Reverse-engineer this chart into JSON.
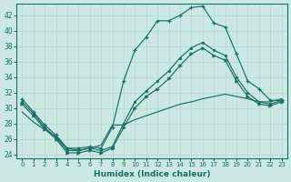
{
  "xlabel": "Humidex (Indice chaleur)",
  "bg_color": "#cce8e3",
  "grid_color": "#b8ddd8",
  "line_color": "#1a6e65",
  "xlim": [
    -0.5,
    23.5
  ],
  "ylim": [
    23.5,
    43.5
  ],
  "yticks": [
    24,
    26,
    28,
    30,
    32,
    34,
    36,
    38,
    40,
    42
  ],
  "xticks": [
    0,
    1,
    2,
    3,
    4,
    5,
    6,
    7,
    8,
    9,
    10,
    11,
    12,
    13,
    14,
    15,
    16,
    17,
    18,
    19,
    20,
    21,
    22,
    23
  ],
  "curve_top_x": [
    0,
    1,
    2,
    3,
    4,
    5,
    6,
    7,
    8,
    9,
    10,
    11,
    12,
    13,
    14,
    15,
    16,
    17,
    18,
    19,
    20,
    21,
    22,
    23
  ],
  "curve_top_y": [
    31.2,
    29.5,
    27.8,
    26.5,
    24.8,
    24.8,
    25.0,
    24.8,
    27.5,
    33.5,
    37.5,
    39.2,
    41.3,
    41.3,
    42.0,
    43.0,
    43.2,
    41.0,
    40.5,
    37.0,
    33.5,
    32.5,
    31.0,
    31.0
  ],
  "curve_mid1_x": [
    0,
    1,
    2,
    3,
    4,
    5,
    6,
    7,
    8,
    9,
    10,
    11,
    12,
    13,
    14,
    15,
    16,
    17,
    18,
    19,
    20,
    21,
    22,
    23
  ],
  "curve_mid1_y": [
    30.8,
    29.3,
    27.5,
    26.2,
    24.5,
    24.5,
    24.8,
    24.5,
    25.0,
    28.0,
    30.8,
    32.2,
    33.5,
    34.8,
    36.5,
    37.8,
    38.5,
    37.5,
    36.8,
    34.0,
    32.0,
    30.8,
    30.5,
    31.0
  ],
  "curve_mid2_x": [
    0,
    1,
    2,
    3,
    4,
    5,
    6,
    7,
    8,
    9,
    10,
    11,
    12,
    13,
    14,
    15,
    16,
    17,
    18,
    19,
    20,
    21,
    22,
    23
  ],
  "curve_mid2_y": [
    30.5,
    29.0,
    27.3,
    26.0,
    24.2,
    24.2,
    24.5,
    24.2,
    24.8,
    27.5,
    30.0,
    31.5,
    32.5,
    33.8,
    35.5,
    37.0,
    37.8,
    36.8,
    36.2,
    33.5,
    31.5,
    30.5,
    30.3,
    30.8
  ],
  "curve_bot_x": [
    0,
    1,
    2,
    3,
    4,
    5,
    6,
    7,
    8,
    9,
    10,
    11,
    12,
    13,
    14,
    15,
    16,
    17,
    18,
    19,
    20,
    21,
    22,
    23
  ],
  "curve_bot_y": [
    29.5,
    28.2,
    27.2,
    26.3,
    24.8,
    24.5,
    24.8,
    25.2,
    27.8,
    27.8,
    28.5,
    29.0,
    29.5,
    30.0,
    30.5,
    30.8,
    31.2,
    31.5,
    31.8,
    31.5,
    31.2,
    30.8,
    30.8,
    31.2
  ]
}
